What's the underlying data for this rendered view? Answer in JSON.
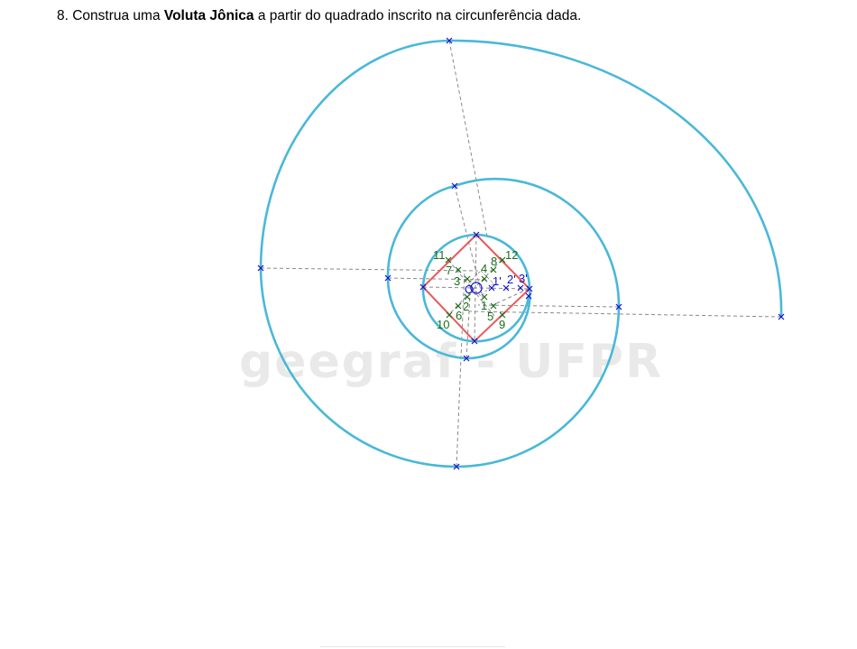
{
  "question": {
    "prefix": "8. Construa uma ",
    "bold": "Voluta Jônica",
    "suffix": " a partir do quadrado inscrito na circunferência dada."
  },
  "watermark": "geegraf - UFPR",
  "colors": {
    "spiral": "#4ab8d8",
    "square": "#e85a5a",
    "construction": "#8a8a8a",
    "blue_points": "#1010d0",
    "green_points": "#1a6e1a"
  },
  "labels": {
    "center": "O",
    "green": [
      "11",
      "7",
      "3",
      "12",
      "8",
      "4",
      "2",
      "6",
      "10",
      "1",
      "5",
      "9"
    ],
    "blue": [
      "1'",
      "2'",
      "3'"
    ]
  }
}
